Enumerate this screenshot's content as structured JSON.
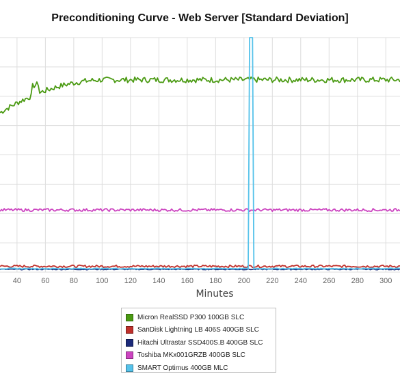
{
  "chart_data": {
    "type": "line",
    "title": "Preconditioning Curve - Web Server [Standard Deviation]",
    "xlabel": "Minutes",
    "ylabel": "",
    "x_ticks": [
      "40",
      "60",
      "80",
      "100",
      "120",
      "140",
      "160",
      "180",
      "200",
      "220",
      "240",
      "260",
      "280",
      "300"
    ],
    "xlim": [
      28,
      310
    ],
    "ylim": [
      0,
      1
    ],
    "y_axis_labels_visible": false,
    "grid": true,
    "legend_position": "bottom-center",
    "series": [
      {
        "name": "Micron RealSSD P300 100GB SLC",
        "color": "#4a9a12",
        "level": 0.82,
        "start_level": 0.68,
        "noise": 0.012
      },
      {
        "name": "SanDisk Lightning LB 406S 400GB SLC",
        "color": "#c0302b",
        "level": 0.025,
        "noise": 0.005
      },
      {
        "name": "Hitachi Ultrastar SSD400S.B 400GB SLC",
        "color": "#1c2a7a",
        "level": 0.012,
        "noise": 0.002
      },
      {
        "name": "Toshiba MKx001GRZB 400GB SLC",
        "color": "#cc44c0",
        "level": 0.265,
        "noise": 0.006
      },
      {
        "name": "SMART Optimus 400GB MLC",
        "color": "#55c2ea",
        "level": 0.015,
        "noise": 0.002,
        "spike_x": [
          204,
          206
        ],
        "spike_level": 1.0
      }
    ]
  }
}
